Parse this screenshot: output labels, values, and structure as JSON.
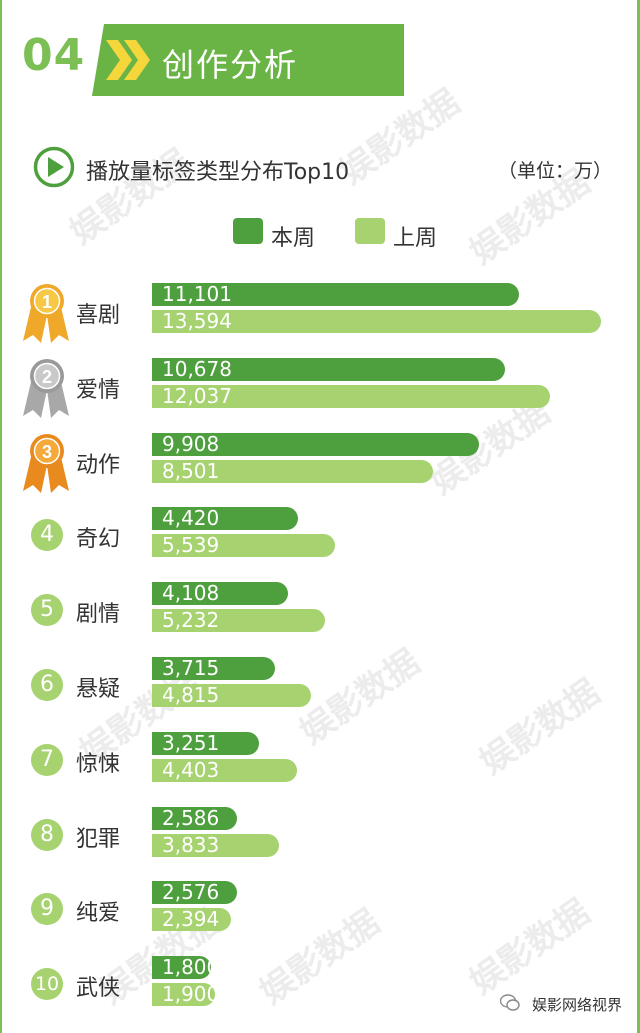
{
  "header": {
    "number": "04",
    "title": "创作分析"
  },
  "chart_title": "播放量标签类型分布Top10",
  "unit": "（单位：万）",
  "legend": {
    "current": "本周",
    "previous": "上周"
  },
  "colors": {
    "current": "#4e9f3d",
    "previous": "#a6d26f",
    "accent": "#6ab445"
  },
  "watermark": "娱影数据",
  "footer": "娱影网络视界",
  "chart_data": {
    "type": "bar",
    "orientation": "horizontal",
    "categories": [
      "喜剧",
      "爱情",
      "动作",
      "奇幻",
      "剧情",
      "悬疑",
      "惊悚",
      "犯罪",
      "纯爱",
      "武侠"
    ],
    "ranks": [
      "1",
      "2",
      "3",
      "4",
      "5",
      "6",
      "7",
      "8",
      "9",
      "10"
    ],
    "series": [
      {
        "name": "本周",
        "values": [
          11101,
          10678,
          9908,
          4420,
          4108,
          3715,
          3251,
          2586,
          2576,
          1800
        ]
      },
      {
        "name": "上周",
        "values": [
          13594,
          12037,
          8501,
          5539,
          5232,
          4815,
          4403,
          3833,
          2394,
          1900
        ]
      }
    ],
    "value_labels": {
      "本周": [
        "11,101",
        "10,678",
        "9,908",
        "4,420",
        "4,108",
        "3,715",
        "3,251",
        "2,586",
        "2,576",
        "1,800"
      ],
      "上周": [
        "13,594",
        "12,037",
        "8,501",
        "5,539",
        "5,232",
        "4,815",
        "4,403",
        "3,833",
        "2,394",
        "1,900"
      ]
    },
    "title": "播放量标签类型分布Top10",
    "xlim": [
      0,
      13594
    ]
  }
}
